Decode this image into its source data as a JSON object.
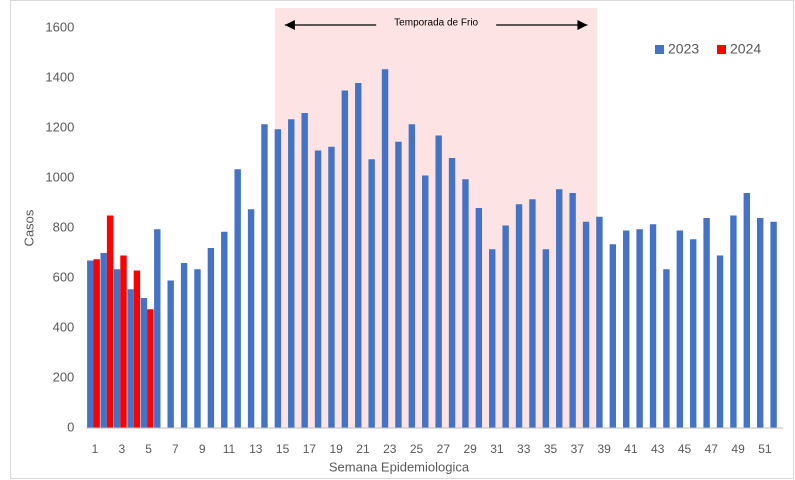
{
  "chart_data": {
    "type": "bar",
    "x_label": "Semana Epidemiologica",
    "y_label": "Casos",
    "categories": [
      "1",
      null,
      "3",
      null,
      "5",
      null,
      "7",
      null,
      "9",
      null,
      "11",
      null,
      "13",
      null,
      "15",
      null,
      "17",
      null,
      "19",
      null,
      "21",
      null,
      "23",
      null,
      "25",
      null,
      "27",
      null,
      "29",
      null,
      "31",
      null,
      "33",
      null,
      "35",
      null,
      "37",
      null,
      "39",
      null,
      "41",
      null,
      "43",
      null,
      "45",
      null,
      "47",
      null,
      "49",
      null,
      "51",
      null
    ],
    "series": [
      {
        "name": "2023",
        "color": "#4472c4",
        "values": [
          670,
          700,
          635,
          555,
          520,
          795,
          590,
          660,
          635,
          720,
          785,
          1035,
          875,
          1215,
          1195,
          1235,
          1260,
          1110,
          1125,
          1350,
          1380,
          1075,
          1435,
          1145,
          1215,
          1010,
          1170,
          1080,
          995,
          880,
          715,
          810,
          895,
          915,
          715,
          955,
          940,
          825,
          845,
          735,
          790,
          795,
          815,
          635,
          790,
          755,
          840,
          690,
          850,
          940,
          840,
          825
        ]
      },
      {
        "name": "2024",
        "color": "#ff0000",
        "values": [
          675,
          850,
          690,
          630,
          475,
          null,
          null,
          null,
          null,
          null,
          null,
          null,
          null,
          null,
          null,
          null,
          null,
          null,
          null,
          null,
          null,
          null,
          null,
          null,
          null,
          null,
          null,
          null,
          null,
          null,
          null,
          null,
          null,
          null,
          null,
          null,
          null,
          null,
          null,
          null,
          null,
          null,
          null,
          null,
          null,
          null,
          null,
          null,
          null,
          null,
          null,
          null
        ]
      }
    ],
    "ylim": [
      0,
      1600
    ],
    "yticks": [
      0,
      200,
      400,
      600,
      800,
      1000,
      1200,
      1400,
      1600
    ],
    "grid": false,
    "legend": "upper right",
    "highlight": {
      "label": "Temporada de Frio",
      "from": 15,
      "to": 38,
      "color": "#fde3e3"
    }
  }
}
